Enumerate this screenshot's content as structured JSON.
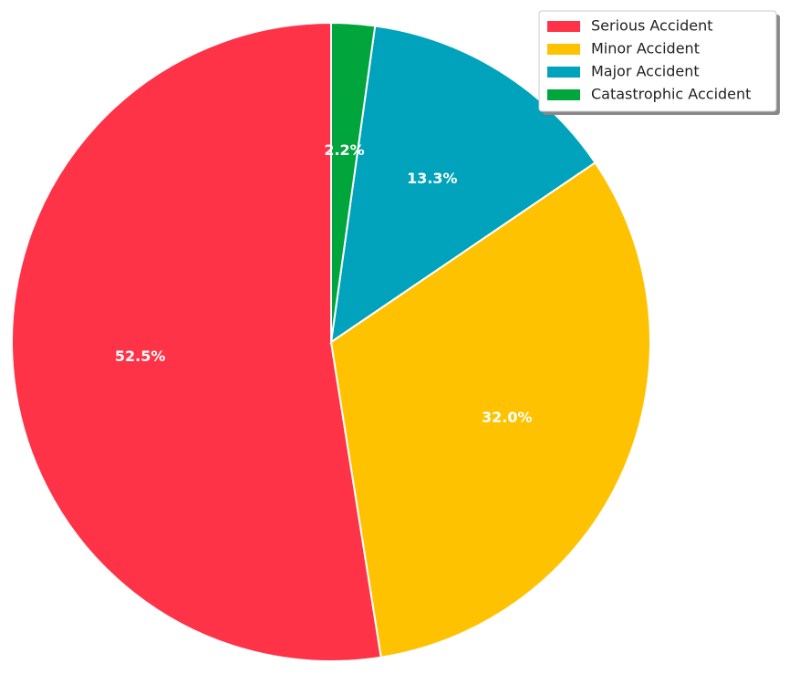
{
  "chart_data": {
    "type": "pie",
    "categories": [
      "Serious Accident",
      "Minor Accident",
      "Major Accident",
      "Catastrophic Accident"
    ],
    "values": [
      52.5,
      32.0,
      13.3,
      2.2
    ],
    "value_labels": [
      "52.5%",
      "32.0%",
      "13.3%",
      "2.2%"
    ],
    "colors": [
      "#ff3347",
      "#ffc200",
      "#00a3bb",
      "#00a63c"
    ],
    "legend": "upper right"
  }
}
